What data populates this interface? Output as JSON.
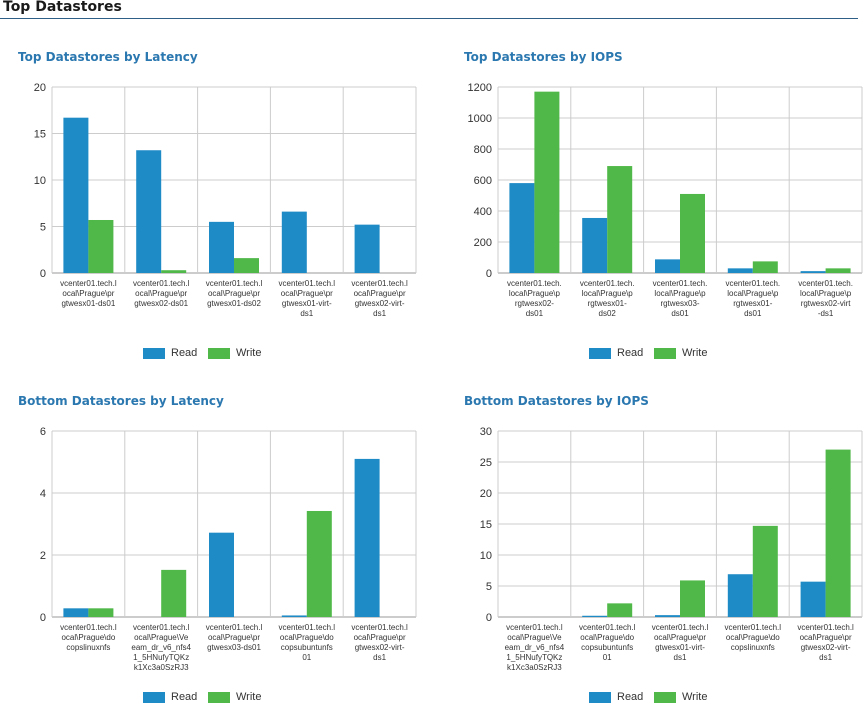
{
  "page": {
    "title": "Top Datastores"
  },
  "legend": {
    "read": "Read",
    "write": "Write"
  },
  "colors": {
    "read": "#1f8bc6",
    "write": "#50b848",
    "grid": "#cccccc",
    "axis": "#999999"
  },
  "chart_data": [
    {
      "type": "bar",
      "title": "Top Datastores by Latency",
      "ylim": [
        0,
        20
      ],
      "yticks": [
        0,
        5,
        10,
        15,
        20
      ],
      "categories": [
        [
          "vcenter01.tech.l",
          "ocal\\Prague\\pr",
          "gtwesx01-ds01"
        ],
        [
          "vcenter01.tech.l",
          "ocal\\Prague\\pr",
          "gtwesx02-ds01"
        ],
        [
          "vcenter01.tech.l",
          "ocal\\Prague\\pr",
          "gtwesx01-ds02"
        ],
        [
          "vcenter01.tech.l",
          "ocal\\Prague\\pr",
          "gtwesx01-virt-",
          "ds1"
        ],
        [
          "vcenter01.tech.l",
          "ocal\\Prague\\pr",
          "gtwesx02-virt-",
          "ds1"
        ]
      ],
      "series": [
        {
          "name": "Read",
          "values": [
            16.7,
            13.2,
            5.5,
            6.6,
            5.2
          ]
        },
        {
          "name": "Write",
          "values": [
            5.7,
            0.3,
            1.6,
            0,
            0
          ]
        }
      ],
      "legend_position": "bottom",
      "grid": true
    },
    {
      "type": "bar",
      "title": "Top Datastores by IOPS",
      "ylim": [
        0,
        1200
      ],
      "yticks": [
        0,
        200,
        400,
        600,
        800,
        1000,
        1200
      ],
      "categories": [
        [
          "vcenter01.tech.",
          "local\\Prague\\p",
          "rgtwesx02-",
          "ds01"
        ],
        [
          "vcenter01.tech.",
          "local\\Prague\\p",
          "rgtwesx01-",
          "ds02"
        ],
        [
          "vcenter01.tech.",
          "local\\Prague\\p",
          "rgtwesx03-",
          "ds01"
        ],
        [
          "vcenter01.tech.",
          "local\\Prague\\p",
          "rgtwesx01-",
          "ds01"
        ],
        [
          "vcenter01.tech.",
          "local\\Prague\\p",
          "rgtwesx02-virt",
          "-ds1"
        ]
      ],
      "series": [
        {
          "name": "Read",
          "values": [
            580,
            355,
            88,
            30,
            12
          ]
        },
        {
          "name": "Write",
          "values": [
            1170,
            690,
            510,
            75,
            30
          ]
        }
      ],
      "legend_position": "bottom",
      "grid": true
    },
    {
      "type": "bar",
      "title": "Bottom Datastores by Latency",
      "ylim": [
        0,
        6
      ],
      "yticks": [
        0,
        2,
        4,
        6
      ],
      "categories": [
        [
          "vcenter01.tech.l",
          "ocal\\Prague\\do",
          "copslinuxnfs"
        ],
        [
          "vcenter01.tech.l",
          "ocal\\Prague\\Ve",
          "eam_dr_v6_nfs4",
          "1_5HNufyTQKz",
          "k1Xc3a0SzRJ3"
        ],
        [
          "vcenter01.tech.l",
          "ocal\\Prague\\pr",
          "gtwesx03-ds01"
        ],
        [
          "vcenter01.tech.l",
          "ocal\\Prague\\do",
          "copsubuntunfs",
          "01"
        ],
        [
          "vcenter01.tech.l",
          "ocal\\Prague\\pr",
          "gtwesx02-virt-",
          "ds1"
        ]
      ],
      "series": [
        {
          "name": "Read",
          "values": [
            0.28,
            0,
            2.72,
            0.05,
            5.1
          ]
        },
        {
          "name": "Write",
          "values": [
            0.28,
            1.52,
            0,
            3.42,
            0
          ]
        }
      ],
      "legend_position": "bottom",
      "grid": true
    },
    {
      "type": "bar",
      "title": "Bottom Datastores by IOPS",
      "ylim": [
        0,
        30
      ],
      "yticks": [
        0,
        5,
        10,
        15,
        20,
        25,
        30
      ],
      "categories": [
        [
          "vcenter01.tech.l",
          "ocal\\Prague\\Ve",
          "eam_dr_v6_nfs4",
          "1_5HNufyTQKz",
          "k1Xc3a0SzRJ3"
        ],
        [
          "vcenter01.tech.l",
          "ocal\\Prague\\do",
          "copsubuntunfs",
          "01"
        ],
        [
          "vcenter01.tech.l",
          "ocal\\Prague\\pr",
          "gtwesx01-virt-",
          "ds1"
        ],
        [
          "vcenter01.tech.l",
          "ocal\\Prague\\do",
          "copslinuxnfs"
        ],
        [
          "vcenter01.tech.l",
          "ocal\\Prague\\pr",
          "gtwesx02-virt-",
          "ds1"
        ]
      ],
      "series": [
        {
          "name": "Read",
          "values": [
            0,
            0.2,
            0.3,
            6.9,
            5.7
          ]
        },
        {
          "name": "Write",
          "values": [
            0,
            2.2,
            5.9,
            14.7,
            27
          ]
        }
      ],
      "legend_position": "bottom",
      "grid": true
    }
  ]
}
